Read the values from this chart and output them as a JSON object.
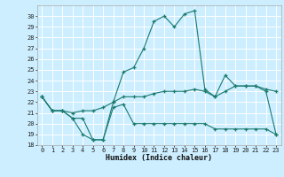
{
  "title": "",
  "xlabel": "Humidex (Indice chaleur)",
  "bg_color": "#cceeff",
  "grid_color": "#ffffff",
  "line_color": "#1a7a6e",
  "xlim": [
    -0.5,
    23.5
  ],
  "ylim": [
    18,
    31
  ],
  "yticks": [
    18,
    19,
    20,
    21,
    22,
    23,
    24,
    25,
    26,
    27,
    28,
    29,
    30
  ],
  "xticks": [
    0,
    1,
    2,
    3,
    4,
    5,
    6,
    7,
    8,
    9,
    10,
    11,
    12,
    13,
    14,
    15,
    16,
    17,
    18,
    19,
    20,
    21,
    22,
    23
  ],
  "series1_x": [
    0,
    1,
    2,
    3,
    4,
    5,
    6,
    7,
    8,
    9,
    10,
    11,
    12,
    13,
    14,
    15,
    16,
    17,
    18,
    19,
    20,
    21,
    22,
    23
  ],
  "series1_y": [
    22.5,
    21.2,
    21.2,
    20.5,
    19.0,
    18.5,
    18.5,
    21.5,
    21.8,
    20.0,
    20.0,
    20.0,
    20.0,
    20.0,
    20.0,
    20.0,
    20.0,
    19.5,
    19.5,
    19.5,
    19.5,
    19.5,
    19.5,
    19.0
  ],
  "series2_x": [
    0,
    1,
    2,
    3,
    4,
    5,
    6,
    7,
    8,
    9,
    10,
    11,
    12,
    13,
    14,
    15,
    16,
    17,
    18,
    19,
    20,
    21,
    22,
    23
  ],
  "series2_y": [
    22.5,
    21.2,
    21.2,
    21.0,
    21.2,
    21.2,
    21.5,
    22.0,
    22.5,
    22.5,
    22.5,
    22.8,
    23.0,
    23.0,
    23.0,
    23.2,
    23.0,
    22.5,
    23.0,
    23.5,
    23.5,
    23.5,
    23.2,
    23.0
  ],
  "series3_x": [
    0,
    1,
    2,
    3,
    4,
    5,
    6,
    7,
    8,
    9,
    10,
    11,
    12,
    13,
    14,
    15,
    16,
    17,
    18,
    19,
    20,
    21,
    22,
    23
  ],
  "series3_y": [
    22.5,
    21.2,
    21.2,
    20.5,
    20.5,
    18.5,
    18.5,
    22.0,
    24.8,
    25.2,
    27.0,
    29.5,
    30.0,
    29.0,
    30.2,
    30.5,
    23.2,
    22.5,
    24.5,
    23.5,
    23.5,
    23.5,
    23.0,
    19.0
  ],
  "xlabel_fontsize": 6,
  "tick_fontsize": 5
}
